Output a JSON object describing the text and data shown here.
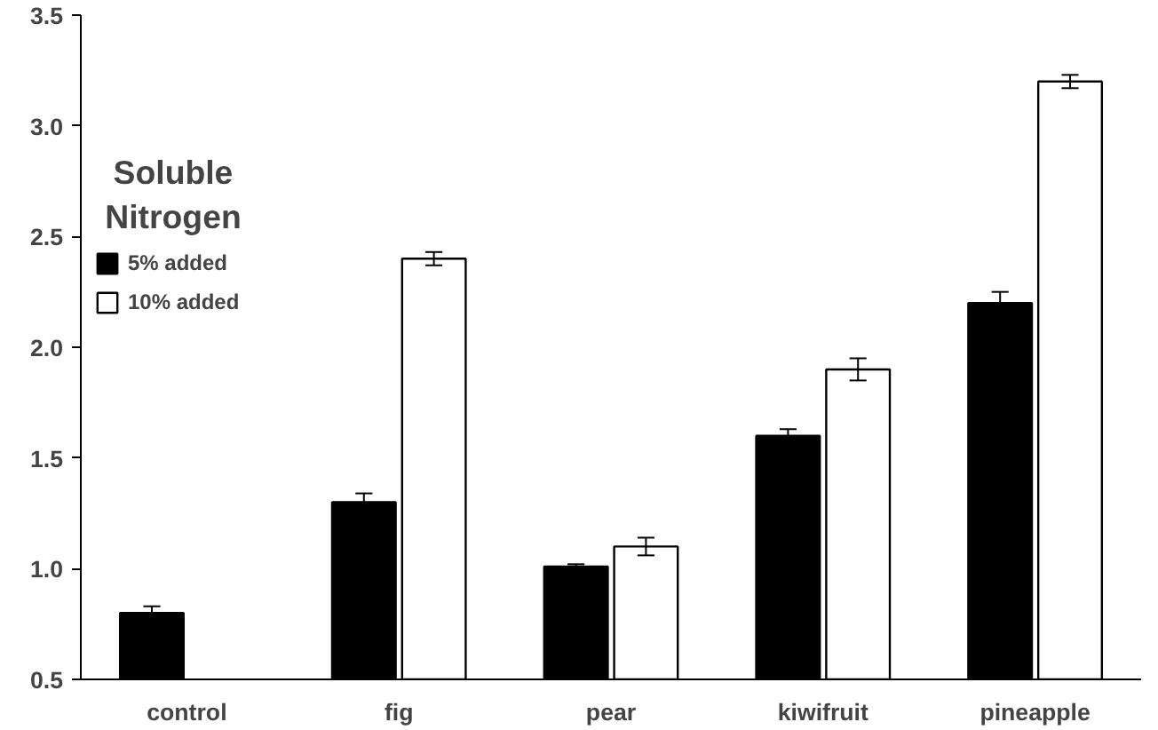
{
  "chart_data": {
    "type": "bar",
    "title": "Soluble Nitrogen",
    "categories": [
      "control",
      "fig",
      "pear",
      "kiwifruit",
      "pineapple"
    ],
    "series": [
      {
        "name": "5% added",
        "color": "#000000",
        "values": [
          0.8,
          1.3,
          1.01,
          1.6,
          2.2
        ],
        "errors": [
          0.03,
          0.04,
          0.01,
          0.03,
          0.05
        ]
      },
      {
        "name": "10% added",
        "color": "#ffffff",
        "values": [
          null,
          2.4,
          1.1,
          1.9,
          3.2
        ],
        "errors": [
          null,
          0.03,
          0.04,
          0.05,
          0.03
        ]
      }
    ],
    "ylim": [
      0.5,
      3.5
    ],
    "yticks": [
      {
        "value": 0.5,
        "label": "0.5"
      },
      {
        "value": 1,
        "label": "1.0"
      },
      {
        "value": 1.5,
        "label": "1.5"
      },
      {
        "value": 2,
        "label": "2.0"
      },
      {
        "value": 2.5,
        "label": "2.5"
      },
      {
        "value": 3,
        "label": "3.0"
      },
      {
        "value": 3.5,
        "label": "3.5"
      }
    ],
    "grid": false,
    "legend": "top left"
  }
}
